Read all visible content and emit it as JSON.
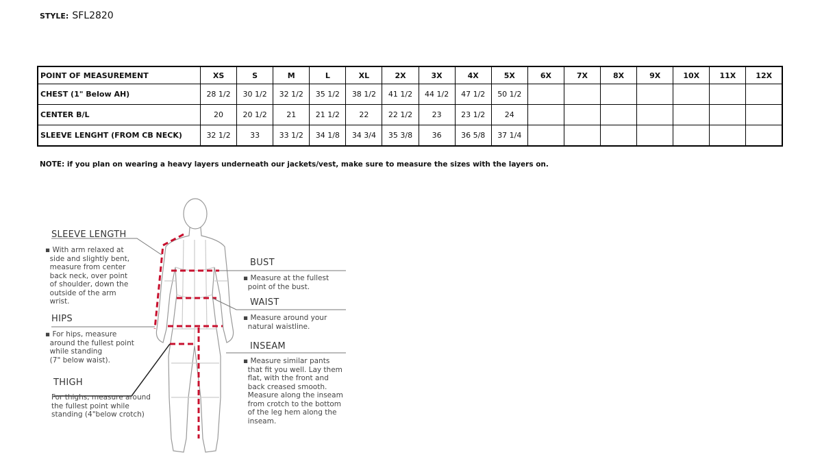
{
  "style_label": "STYLE:",
  "style_value": "SFL2820",
  "table": {
    "headers": [
      "POINT OF MEASUREMENT",
      "XS",
      "S",
      "M",
      "L",
      "XL",
      "2X",
      "3X",
      "4X",
      "5X",
      "6X",
      "7X",
      "8X",
      "9X",
      "10X",
      "11X",
      "12X"
    ],
    "rows": [
      [
        "CHEST (1\" Below AH)",
        "28 1/2",
        "30 1/2",
        "32 1/2",
        "35 1/2",
        "38 1/2",
        "41 1/2",
        "44 1/2",
        "47 1/2",
        "50 1/2",
        "",
        "",
        "",
        "",
        "",
        "",
        ""
      ],
      [
        "CENTER B/L",
        "20",
        "20 1/2",
        "21",
        "21 1/2",
        "22",
        "22 1/2",
        "23",
        "23 1/2",
        "24",
        "",
        "",
        "",
        "",
        "",
        "",
        ""
      ],
      [
        "SLEEVE LENGHT (FROM CB NECK)",
        "32 1/2",
        "33",
        "33 1/2",
        "34 1/8",
        "34 3/4",
        "35 3/8",
        "36",
        "36 5/8",
        "37 1/4",
        "",
        "",
        "",
        "",
        "",
        "",
        ""
      ]
    ]
  },
  "note": "NOTE: if you plan on wearing a heavy layers underneath our jackets/vest, make sure to measure the sizes with the layers on.",
  "guide": {
    "sleeve": {
      "title": "SLEEVE LENGTH",
      "text": "▪ With arm relaxed at\n  side and slightly bent,\n  measure from center\n  back neck, over point\n  of shoulder, down the\n  outside of the arm\n  wrist."
    },
    "hips": {
      "title": "HIPS",
      "text": "▪ For hips, measure\n  around the fullest point\n  while standing\n  (7\" below waist)."
    },
    "thigh": {
      "title": "THIGH",
      "text": "For thighs, measure around\nthe fullest point while\nstanding (4\"below crotch)"
    },
    "bust": {
      "title": "BUST",
      "text": "▪ Measure at the fullest\n  point of the bust."
    },
    "waist": {
      "title": "WAIST",
      "text": "▪ Measure around your\n  natural waistline."
    },
    "inseam": {
      "title": "INSEAM",
      "text": "▪ Measure similar pants\n  that fit you well. Lay them\n  flat, with the front and\n  back creased smooth.\n  Measure along the inseam\n  from crotch to the bottom\n  of the leg hem along the\n  inseam."
    }
  },
  "colors": {
    "measure_line": "#c8102e"
  }
}
